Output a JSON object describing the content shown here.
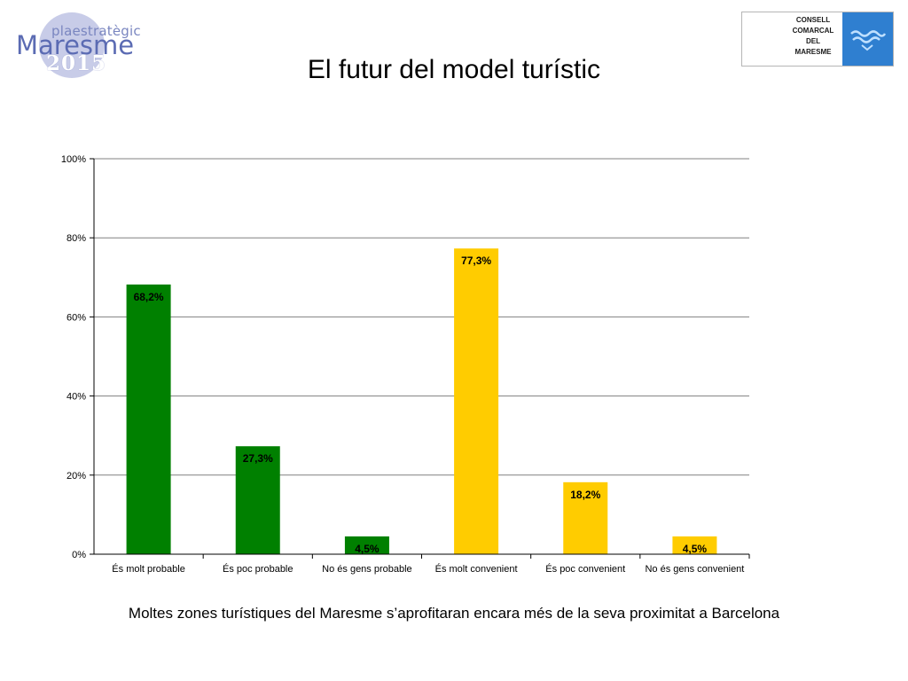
{
  "header": {
    "title": "El futur del model turístic",
    "logo_left": {
      "line1": "plaestratègic",
      "line2": "Maresme",
      "line3": "2015"
    },
    "logo_right": {
      "lines": [
        "CONSELL",
        "COMARCAL",
        "DEL",
        "MARESME"
      ]
    }
  },
  "chart_data": {
    "type": "bar",
    "categories": [
      "És molt probable",
      "És poc probable",
      "No és gens probable",
      "És molt convenient",
      "És poc convenient",
      "No és gens convenient"
    ],
    "values": [
      68.2,
      27.3,
      4.5,
      77.3,
      18.2,
      4.5
    ],
    "value_labels": [
      "68,2%",
      "27,3%",
      "4,5%",
      "77,3%",
      "18,2%",
      "4,5%"
    ],
    "bar_colors": [
      "#008000",
      "#008000",
      "#008000",
      "#ffcc00",
      "#ffcc00",
      "#ffcc00"
    ],
    "yticks": [
      "0%",
      "20%",
      "40%",
      "60%",
      "80%",
      "100%"
    ],
    "ylim": [
      0,
      100
    ],
    "grid": true,
    "title": "",
    "xlabel": "",
    "ylabel": ""
  },
  "footer": {
    "caption": "Moltes zones turístiques del Maresme s’aprofitaran encara més de la seva proximitat a Barcelona"
  }
}
